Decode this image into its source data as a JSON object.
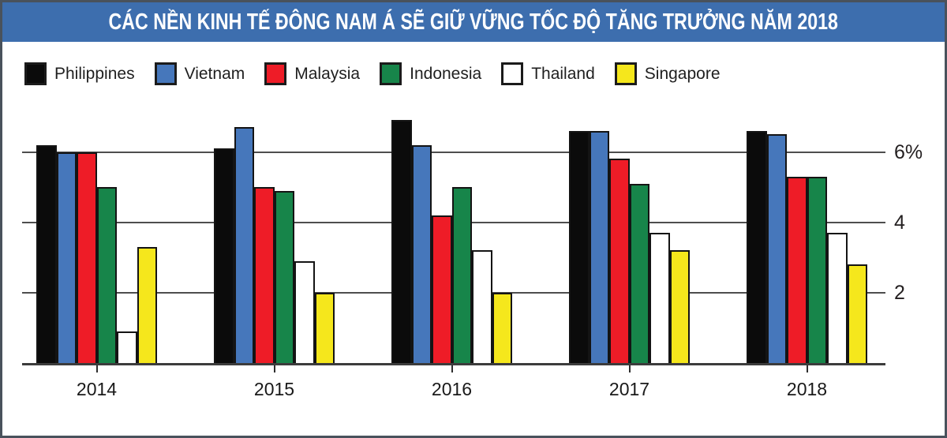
{
  "title": "CÁC NỀN KINH TẾ ĐÔNG NAM Á SẼ GIỮ VỮNG TỐC ĐỘ TĂNG TRƯỞNG NĂM 2018",
  "title_bar": {
    "background": "#3d6eae",
    "text_color": "#ffffff"
  },
  "frame": {
    "border_color": "#49525c",
    "background": "#ffffff"
  },
  "chart_data": {
    "type": "bar",
    "title": "CÁC NỀN KINH TẾ ĐÔNG NAM Á SẼ GIỮ VỮNG TỐC ĐỘ TĂNG TRƯỞNG NĂM 2018",
    "categories": [
      "2014",
      "2015",
      "2016",
      "2017",
      "2018"
    ],
    "series": [
      {
        "name": "Philippines",
        "color": "#0b0b0b",
        "values": [
          6.2,
          6.1,
          6.9,
          6.6,
          6.6
        ]
      },
      {
        "name": "Vietnam",
        "color": "#4677bb",
        "values": [
          6.0,
          6.7,
          6.2,
          6.6,
          6.5
        ]
      },
      {
        "name": "Malaysia",
        "color": "#ee1c27",
        "values": [
          6.0,
          5.0,
          4.2,
          5.8,
          5.3
        ]
      },
      {
        "name": "Indonesia",
        "color": "#17854a",
        "values": [
          5.0,
          4.9,
          5.0,
          5.1,
          5.3
        ]
      },
      {
        "name": "Thailand",
        "color": "#ffffff",
        "values": [
          0.9,
          2.9,
          3.2,
          3.7,
          3.7
        ]
      },
      {
        "name": "Singapore",
        "color": "#f5e71c",
        "values": [
          3.3,
          2.0,
          2.0,
          3.2,
          2.8
        ]
      }
    ],
    "ylim": [
      0,
      7.2
    ],
    "yticks": [
      {
        "value": 2,
        "label": "2"
      },
      {
        "value": 4,
        "label": "4"
      },
      {
        "value": 6,
        "label": "6%"
      }
    ],
    "xlabel": "",
    "ylabel": "",
    "grid": true,
    "gridline_color": "#4e4e4e",
    "axis_color": "#3c3c3c",
    "legend_position": "top-left",
    "bar_outline_color": "#141414"
  }
}
